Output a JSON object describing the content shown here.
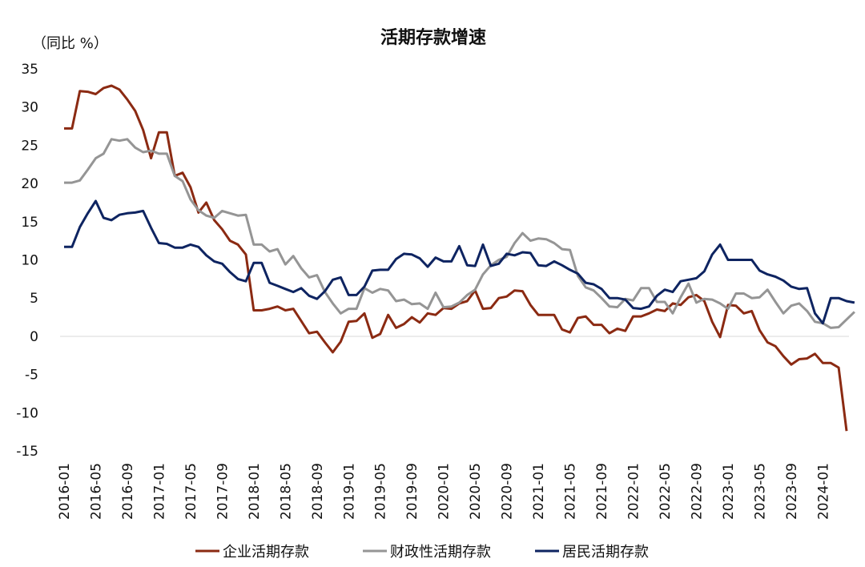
{
  "chart_data": {
    "type": "line",
    "title": "活期存款增速",
    "ylabel": "（同比 %）",
    "xlabel": "",
    "ylim": [
      -15,
      35
    ],
    "yticks": [
      -15,
      -10,
      -5,
      0,
      5,
      10,
      15,
      20,
      25,
      30,
      35
    ],
    "ytick_labels": [
      "-15",
      "-10",
      "-5",
      "0",
      "5",
      "10",
      "15",
      "20",
      "25",
      "30",
      "35"
    ],
    "x_start": "2016-01",
    "x_ticks": [
      "2016-01",
      "2016-05",
      "2016-09",
      "2017-01",
      "2017-05",
      "2017-09",
      "2018-01",
      "2018-05",
      "2018-09",
      "2019-01",
      "2019-05",
      "2019-09",
      "2020-01",
      "2020-05",
      "2020-09",
      "2021-01",
      "2021-05",
      "2021-09",
      "2022-01",
      "2022-05",
      "2022-09",
      "2023-01",
      "2023-05",
      "2023-09",
      "2024-01"
    ],
    "legend_position": "bottom",
    "series": [
      {
        "name": "企业活期存款",
        "color": "#8B2A12",
        "values": [
          27.2,
          27.2,
          32.1,
          32.0,
          31.7,
          32.5,
          32.8,
          32.3,
          31.0,
          29.5,
          27.0,
          23.3,
          26.7,
          26.7,
          21.0,
          21.4,
          19.5,
          16.2,
          17.5,
          15.2,
          14.0,
          12.5,
          12.0,
          10.7,
          3.4,
          3.4,
          3.6,
          3.9,
          3.4,
          3.6,
          2.0,
          0.4,
          0.6,
          -0.8,
          -2.1,
          -0.7,
          1.9,
          2.0,
          3.0,
          -0.2,
          0.3,
          2.8,
          1.1,
          1.6,
          2.5,
          1.8,
          3.0,
          2.8,
          3.7,
          3.6,
          4.3,
          4.6,
          6.0,
          3.6,
          3.7,
          5.0,
          5.2,
          6.0,
          5.9,
          4.1,
          2.8,
          2.8,
          2.8,
          0.9,
          0.5,
          2.4,
          2.6,
          1.5,
          1.5,
          0.4,
          1.0,
          0.7,
          2.6,
          2.6,
          3.0,
          3.5,
          3.3,
          4.3,
          4.1,
          5.1,
          5.4,
          4.6,
          1.9,
          -0.1,
          4.1,
          4.0,
          3.0,
          3.3,
          0.8,
          -0.8,
          -1.3,
          -2.6,
          -3.7,
          -3.0,
          -2.9,
          -2.3,
          -3.5,
          -3.5,
          -4.1,
          -12.4
        ]
      },
      {
        "name": "财政性活期存款",
        "color": "#959595",
        "values": [
          20.1,
          20.1,
          20.4,
          21.8,
          23.3,
          23.9,
          25.8,
          25.6,
          25.8,
          24.7,
          24.1,
          24.3,
          23.9,
          23.9,
          21.0,
          20.3,
          17.9,
          16.5,
          15.8,
          15.5,
          16.4,
          16.1,
          15.8,
          15.9,
          12.0,
          12.0,
          11.1,
          11.4,
          9.4,
          10.5,
          8.9,
          7.7,
          8.0,
          5.8,
          4.3,
          3.0,
          3.6,
          3.6,
          6.3,
          5.7,
          6.2,
          6.0,
          4.6,
          4.8,
          4.2,
          4.3,
          3.6,
          5.7,
          3.8,
          3.9,
          4.4,
          5.4,
          6.1,
          8.1,
          9.3,
          10.0,
          10.4,
          12.2,
          13.5,
          12.5,
          12.8,
          12.7,
          12.2,
          11.4,
          11.3,
          7.9,
          6.4,
          6.0,
          5.0,
          3.9,
          3.8,
          4.9,
          4.7,
          6.3,
          6.3,
          4.5,
          4.5,
          3.0,
          5.1,
          6.9,
          4.4,
          4.9,
          4.8,
          4.3,
          3.6,
          5.6,
          5.6,
          5.0,
          5.1,
          6.1,
          4.5,
          3.0,
          4.0,
          4.3,
          3.3,
          1.9,
          1.7,
          1.1,
          1.2,
          2.2,
          3.2
        ]
      },
      {
        "name": "居民活期存款",
        "color": "#0E2461",
        "values": [
          11.7,
          11.7,
          14.3,
          16.1,
          17.7,
          15.5,
          15.2,
          15.9,
          16.1,
          16.2,
          16.4,
          14.2,
          12.2,
          12.1,
          11.6,
          11.6,
          12.0,
          11.7,
          10.6,
          9.8,
          9.5,
          8.4,
          7.5,
          7.2,
          9.6,
          9.6,
          7.0,
          6.6,
          6.2,
          5.8,
          6.3,
          5.3,
          4.9,
          5.9,
          7.4,
          7.7,
          5.4,
          5.4,
          6.5,
          8.6,
          8.7,
          8.7,
          10.1,
          10.8,
          10.7,
          10.2,
          9.1,
          10.3,
          9.8,
          9.8,
          11.8,
          9.3,
          9.2,
          12.0,
          9.2,
          9.5,
          10.8,
          10.6,
          11.0,
          10.9,
          9.3,
          9.2,
          9.8,
          9.3,
          8.7,
          8.2,
          7.0,
          6.8,
          6.2,
          5.0,
          5.0,
          4.8,
          3.7,
          3.6,
          3.9,
          5.3,
          6.1,
          5.8,
          7.2,
          7.4,
          7.6,
          8.5,
          10.7,
          12.0,
          10.0,
          10.0,
          10.0,
          10.0,
          8.6,
          8.1,
          7.8,
          7.3,
          6.5,
          6.2,
          6.3,
          3.0,
          1.7,
          5.0,
          5.0,
          4.6,
          4.4
        ]
      }
    ]
  }
}
